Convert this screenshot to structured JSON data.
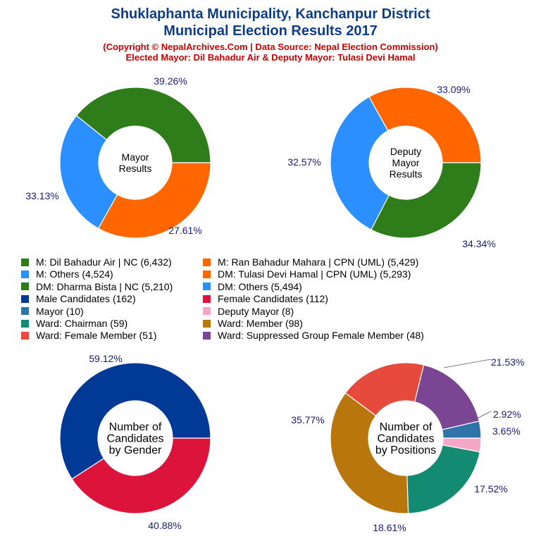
{
  "header": {
    "title_line1": "Shuklaphanta Municipality, Kanchanpur District",
    "title_line2": "Municipal Election Results 2017",
    "copyright": "(Copyright © NepalArchives.Com | Data Source: Nepal Election Commission)",
    "elected": "Elected Mayor: Dil Bahadur Air & Deputy Mayor: Tulasi Devi Hamal"
  },
  "legend": [
    {
      "label": "M: Dil Bahadur Air | NC (6,432)",
      "color": "#2e7d1a"
    },
    {
      "label": "M: Ran Bahadur Mahara | CPN (UML) (5,429)",
      "color": "#ff6600"
    },
    {
      "label": "M: Others (4,524)",
      "color": "#2b8fff"
    },
    {
      "label": "DM: Tulasi Devi Hamal | CPN (UML) (5,293)",
      "color": "#ff6600"
    },
    {
      "label": "DM: Dharma Bista | NC (5,210)",
      "color": "#2e7d1a"
    },
    {
      "label": "DM: Others (5,494)",
      "color": "#2b8fff"
    },
    {
      "label": "Male Candidates (162)",
      "color": "#003a96"
    },
    {
      "label": "Female Candidates (112)",
      "color": "#dc143c"
    },
    {
      "label": "Mayor (10)",
      "color": "#2e74a8"
    },
    {
      "label": "Deputy Mayor (8)",
      "color": "#f4a6c4"
    },
    {
      "label": "Ward: Chairman (59)",
      "color": "#138a72"
    },
    {
      "label": "Ward: Member (98)",
      "color": "#b8760c"
    },
    {
      "label": "Ward: Female Member (51)",
      "color": "#e64a3c"
    },
    {
      "label": "Ward: Suppressed Group Female Member (48)",
      "color": "#7a4592"
    }
  ],
  "chart_data": [
    {
      "type": "pie",
      "center_label": [
        "Mayor",
        "Results"
      ],
      "slices": [
        {
          "name": "M: Dil Bahadur Air | NC",
          "value": 6432,
          "percent_label": "39.26%",
          "color": "#2e7d1a"
        },
        {
          "name": "M: Others",
          "value": 4524,
          "percent_label": "27.61%",
          "color": "#2b8fff"
        },
        {
          "name": "M: Ran Bahadur Mahara | CPN (UML)",
          "value": 5429,
          "percent_label": "33.13%",
          "color": "#ff6600"
        }
      ]
    },
    {
      "type": "pie",
      "center_label": [
        "Deputy",
        "Mayor",
        "Results"
      ],
      "slices": [
        {
          "name": "DM: Tulasi Devi Hamal | CPN (UML)",
          "value": 5293,
          "percent_label": "33.09%",
          "color": "#ff6600"
        },
        {
          "name": "DM: Others",
          "value": 5494,
          "percent_label": "34.34%",
          "color": "#2b8fff"
        },
        {
          "name": "DM: Dharma Bista | NC",
          "value": 5210,
          "percent_label": "32.57%",
          "color": "#2e7d1a"
        }
      ]
    },
    {
      "type": "pie",
      "center_label": [
        "Number of",
        "Candidates",
        "by Gender"
      ],
      "slices": [
        {
          "name": "Male Candidates",
          "value": 162,
          "percent_label": "59.12%",
          "color": "#003a96"
        },
        {
          "name": "Female Candidates",
          "value": 112,
          "percent_label": "40.88%",
          "color": "#dc143c"
        }
      ]
    },
    {
      "type": "pie",
      "center_label": [
        "Number of",
        "Candidates",
        "by Positions"
      ],
      "slices": [
        {
          "name": "Mayor",
          "value": 10,
          "percent_label": "3.65%",
          "color": "#2e74a8"
        },
        {
          "name": "Ward: Suppressed Group Female Member",
          "value": 48,
          "percent_label": "17.52%",
          "color": "#7a4592"
        },
        {
          "name": "Ward: Female Member",
          "value": 51,
          "percent_label": "18.61%",
          "color": "#e64a3c"
        },
        {
          "name": "Ward: Member",
          "value": 98,
          "percent_label": "35.77%",
          "color": "#b8760c"
        },
        {
          "name": "Ward: Chairman",
          "value": 59,
          "percent_label": "21.53%",
          "color": "#138a72"
        },
        {
          "name": "Deputy Mayor",
          "value": 8,
          "percent_label": "2.92%",
          "color": "#f4a6c4"
        }
      ]
    }
  ]
}
